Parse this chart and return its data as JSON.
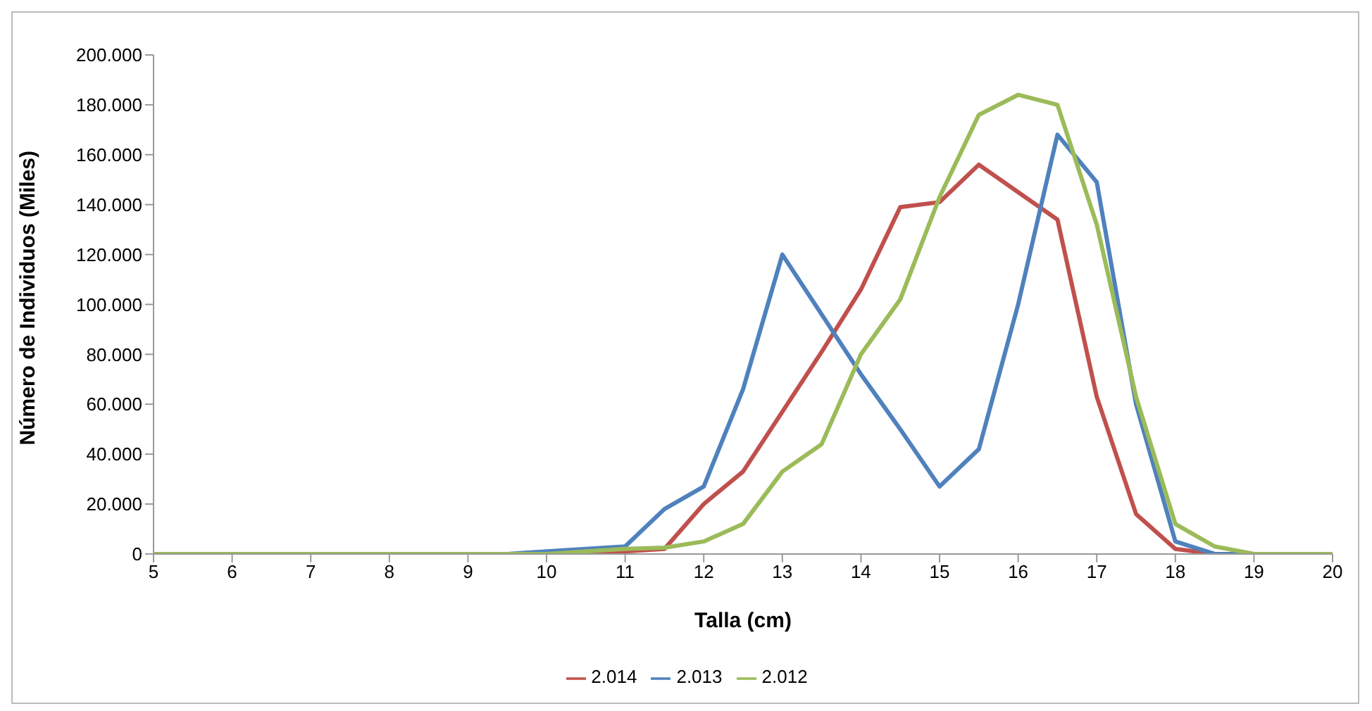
{
  "chart_data": {
    "type": "line",
    "xlabel": "Talla (cm)",
    "ylabel": "Número de Individuos (Miles)",
    "x": [
      5,
      5.5,
      6,
      6.5,
      7,
      7.5,
      8,
      8.5,
      9,
      9.5,
      10,
      10.5,
      11,
      11.5,
      12,
      12.5,
      13,
      13.5,
      14,
      14.5,
      15,
      15.5,
      16,
      16.5,
      17,
      17.5,
      18,
      18.5,
      19,
      19.5,
      20
    ],
    "series": [
      {
        "name": "2.014",
        "color": "#c0504d",
        "values": [
          null,
          null,
          null,
          null,
          null,
          null,
          null,
          null,
          null,
          null,
          0,
          0,
          1000,
          2000,
          20000,
          33000,
          57000,
          81000,
          106000,
          139000,
          141000,
          156000,
          145000,
          134000,
          63000,
          16000,
          2000,
          0,
          null,
          null,
          null
        ]
      },
      {
        "name": "2.013",
        "color": "#4f81bd",
        "values": [
          null,
          null,
          null,
          null,
          null,
          null,
          null,
          null,
          0,
          0,
          1000,
          2000,
          3000,
          18000,
          27000,
          66000,
          120000,
          96000,
          72000,
          50000,
          27000,
          42000,
          100000,
          168000,
          149000,
          60000,
          5000,
          0,
          0,
          null,
          null
        ]
      },
      {
        "name": "2.012",
        "color": "#9bbb59",
        "values": [
          0,
          0,
          0,
          0,
          0,
          0,
          0,
          0,
          0,
          0,
          0,
          1000,
          2000,
          2500,
          5000,
          12000,
          33000,
          44000,
          80000,
          102000,
          143000,
          176000,
          184000,
          180000,
          132000,
          63000,
          12000,
          3000,
          0,
          0,
          0
        ]
      }
    ],
    "xlim": [
      5,
      20
    ],
    "xticks": [
      5,
      6,
      7,
      8,
      9,
      10,
      11,
      12,
      13,
      14,
      15,
      16,
      17,
      18,
      19,
      20
    ],
    "ylim": [
      0,
      200000
    ],
    "yticks": [
      {
        "value": 0,
        "label": "0"
      },
      {
        "value": 20000,
        "label": "20.000"
      },
      {
        "value": 40000,
        "label": "40.000"
      },
      {
        "value": 60000,
        "label": "60.000"
      },
      {
        "value": 80000,
        "label": "80.000"
      },
      {
        "value": 100000,
        "label": "100.000"
      },
      {
        "value": 120000,
        "label": "120.000"
      },
      {
        "value": 140000,
        "label": "140.000"
      },
      {
        "value": 160000,
        "label": "160.000"
      },
      {
        "value": 180000,
        "label": "180.000"
      },
      {
        "value": 200000,
        "label": "200.000"
      }
    ],
    "grid": false,
    "legend": "bottom",
    "marker": "none",
    "line_style": "solid"
  }
}
